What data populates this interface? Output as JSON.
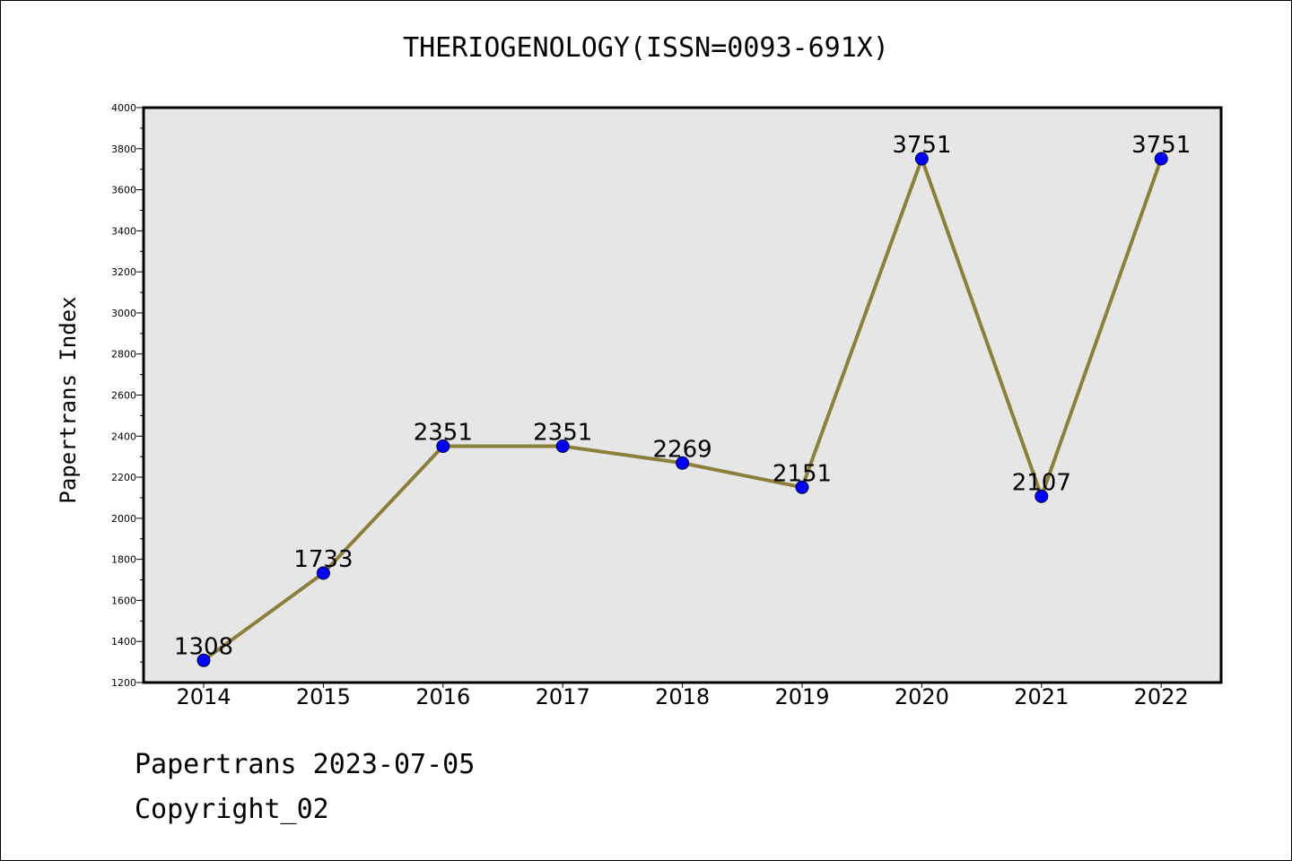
{
  "chart_data": {
    "type": "line",
    "title": "THERIOGENOLOGY(ISSN=0093-691X)",
    "xlabel": "",
    "ylabel": "Papertrans Index",
    "categories": [
      "2014",
      "2015",
      "2016",
      "2017",
      "2018",
      "2019",
      "2020",
      "2021",
      "2022"
    ],
    "series": [
      {
        "values": [
          1308,
          1733,
          2351,
          2351,
          2269,
          2151,
          3751,
          2107,
          3751
        ]
      }
    ],
    "data_labels": [
      "1308",
      "1733",
      "2351",
      "2351",
      "2269",
      "2151",
      "3751",
      "2107",
      "3751"
    ],
    "ylim": [
      1200,
      4000
    ],
    "y_ticks": [
      1200,
      1400,
      1600,
      1800,
      2000,
      2200,
      2400,
      2600,
      2800,
      3000,
      3200,
      3400,
      3600,
      3800,
      4000
    ],
    "grid": false,
    "legend": "none",
    "colors": {
      "line": "#8c7f3c",
      "marker": "#0000ff",
      "plot_bg": "#e6e6e6"
    }
  },
  "footer": {
    "line1": "Papertrans 2023-07-05",
    "line2": "Copyright_02"
  }
}
